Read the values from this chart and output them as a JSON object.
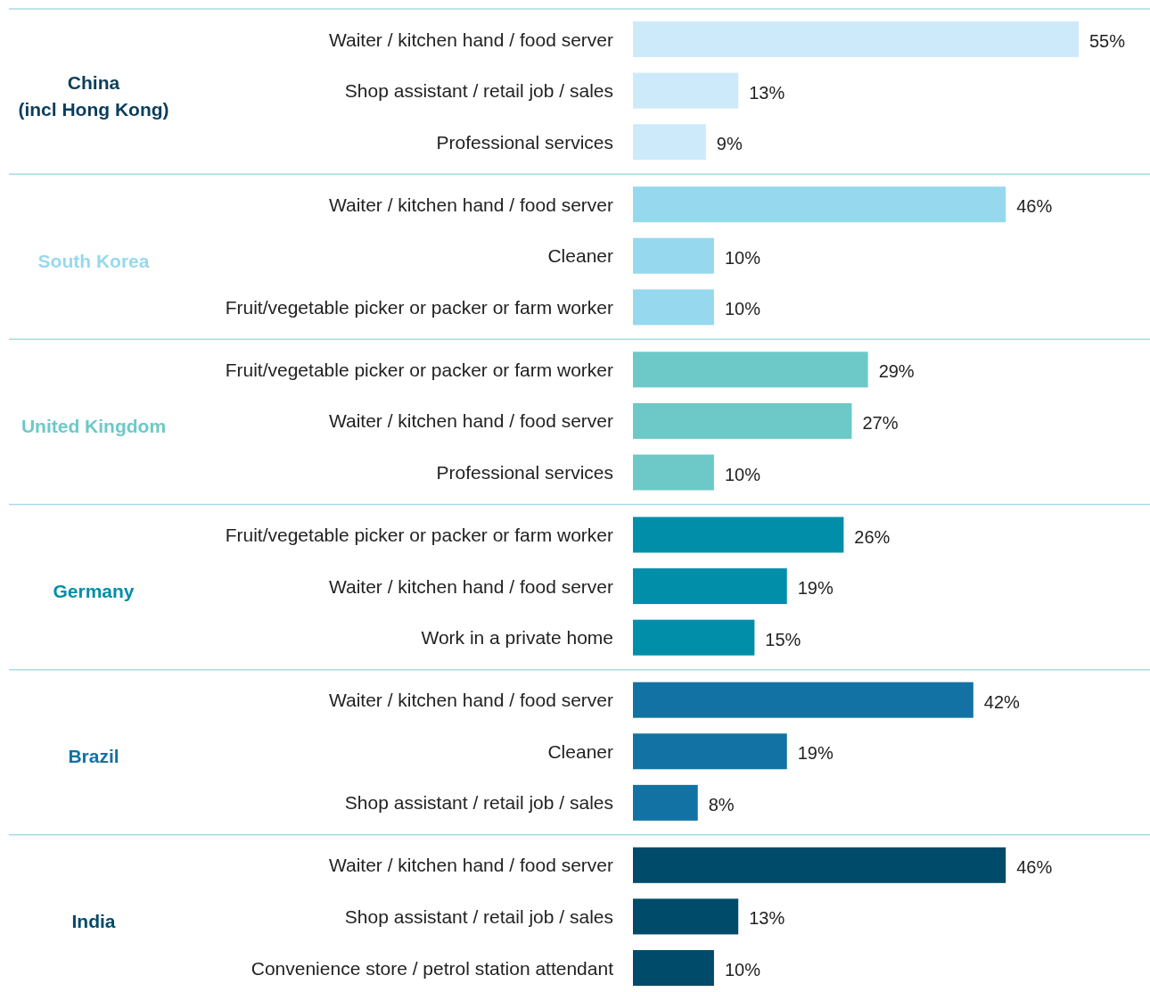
{
  "chart_data": {
    "type": "bar",
    "orientation": "horizontal",
    "categories": [
      "Waiter / kitchen hand / food server",
      "Shop assistant / retail job / sales",
      "Professional services",
      "Waiter / kitchen hand / food server",
      "Cleaner",
      "Fruit/vegetable picker or packer or farm worker",
      "Fruit/vegetable picker or packer or farm worker",
      "Waiter / kitchen hand / food server",
      "Professional services",
      "Fruit/vegetable picker or packer or farm worker",
      "Waiter / kitchen hand / food server",
      "Work in a private home",
      "Waiter / kitchen hand / food server",
      "Cleaner",
      "Shop assistant / retail job / sales",
      "Waiter / kitchen hand / food server",
      "Shop assistant / retail job / sales",
      "Convenience store / petrol station attendant"
    ],
    "values": [
      55,
      13,
      9,
      46,
      10,
      10,
      29,
      27,
      10,
      26,
      19,
      15,
      42,
      19,
      8,
      46,
      13,
      10
    ],
    "colors": [
      "#cdeafa",
      "#cdeafa",
      "#cdeafa",
      "#96d9ef",
      "#96d9ef",
      "#96d9ef",
      "#6cc9c8",
      "#6cc9c8",
      "#6cc9c8",
      "#008ea8",
      "#008ea8",
      "#008ea8",
      "#1272a3",
      "#1272a3",
      "#1272a3",
      "#004a6a",
      "#004a6a",
      "#004a6a"
    ],
    "value_labels": [
      "55%",
      "13%",
      "9%",
      "46%",
      "10%",
      "10%",
      "29%",
      "27%",
      "10%",
      "26%",
      "19%",
      "15%",
      "42%",
      "19%",
      "8%",
      "46%",
      "13%",
      "10%"
    ],
    "annotations": [
      "China\n(incl Hong Kong)",
      "South Korea",
      "United Kingdom",
      "Germany",
      "Brazil",
      "India"
    ]
  }
}
